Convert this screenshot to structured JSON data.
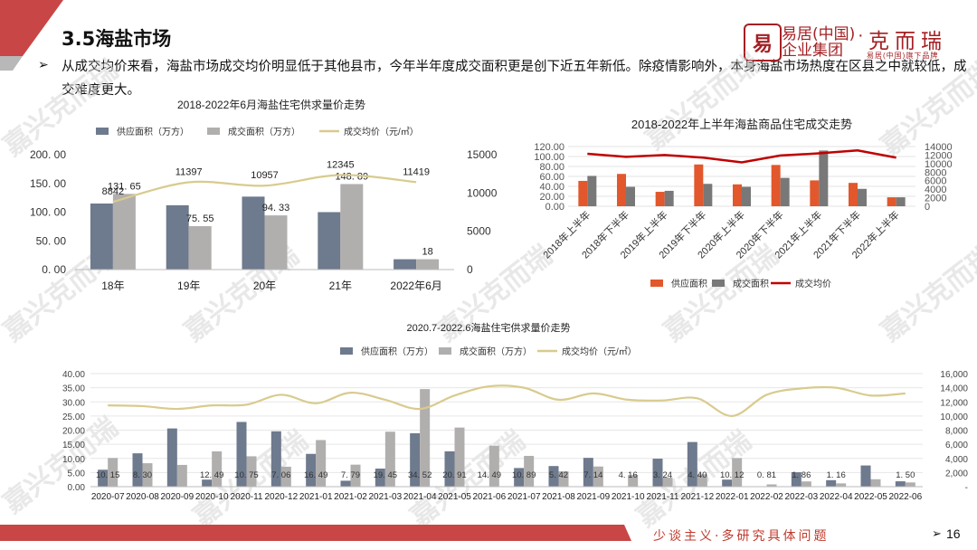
{
  "header": {
    "title": "3.5海盐市场",
    "bullet": "➢",
    "paragraph": "从成交均价来看，海盐市场成交均价明显低于其他县市，今年半年度成交面积更是创下近五年新低。除疫情影响外，本身海盐市场热度在区县之中就较低，成交难度更大。"
  },
  "logo": {
    "seal": "易",
    "line1": "易居(中国)",
    "line2": "企业集团",
    "dot": "·",
    "brand": "克而瑞",
    "sub": "易居(中国)旗下品牌"
  },
  "watermark_text": "嘉兴克而瑞",
  "footer": {
    "slogan": "少谈主义·多研究具体问题",
    "arrow": "➢",
    "page": "16"
  },
  "colors": {
    "supply_slate": "#6e7a8d",
    "deal_gray": "#b1aeae",
    "price_tan": "#d8cb8e",
    "supply_red": "#e2572c",
    "deal_dark": "#787878",
    "price_red": "#c00000",
    "accent_red": "#c0392b"
  },
  "chart_data": [
    {
      "type": "bar",
      "title": "2018-2022年6月海盐住宅供求量价走势",
      "categories": [
        "18年",
        "19年",
        "20年",
        "21年",
        "2022年6月"
      ],
      "series": [
        {
          "name": "供应面积（万方）",
          "values": [
            115,
            112,
            127,
            100,
            18
          ]
        },
        {
          "name": "成交面积（万方）",
          "values": [
            131.65,
            75.55,
            94.33,
            148.89,
            18
          ],
          "labels": [
            "131. 65",
            "75. 55",
            "94. 33",
            "148. 89",
            "18"
          ]
        },
        {
          "name": "成交均价（元/㎡）",
          "chart": "line",
          "axis": "right",
          "values": [
            8842,
            11397,
            10957,
            12345,
            11419
          ],
          "labels": [
            "8842",
            "11397",
            "10957",
            "12345",
            "11419"
          ]
        }
      ],
      "ylim": [
        0,
        200
      ],
      "yticks": [
        "0. 00",
        "50. 00",
        "100. 00",
        "150. 00",
        "200. 00"
      ],
      "y2lim": [
        0,
        15000
      ],
      "y2ticks": [
        "0",
        "5000",
        "10000",
        "15000"
      ],
      "legend": "top"
    },
    {
      "type": "bar",
      "title": "2018-2022年上半年海盐商品住宅成交走势",
      "categories": [
        "2018年上半年",
        "2018年下半年",
        "2019年上半年",
        "2019年下半年",
        "2020年上半年",
        "2020年下半年",
        "2021年上半年",
        "2021年下半年",
        "2022年上半年"
      ],
      "series": [
        {
          "name": "供应面积",
          "values": [
            51,
            65,
            29,
            84,
            44,
            83,
            52,
            47,
            18
          ]
        },
        {
          "name": "成交面积",
          "values": [
            61,
            39,
            31,
            45,
            39,
            57,
            112,
            35,
            18
          ]
        },
        {
          "name": "成交均价",
          "chart": "line",
          "axis": "right",
          "values": [
            12300,
            11600,
            12000,
            11400,
            10300,
            11900,
            12400,
            13100,
            11400
          ]
        }
      ],
      "ylim": [
        0,
        120
      ],
      "yticks": [
        "0.00",
        "20.00",
        "40.00",
        "60.00",
        "80.00",
        "100.00",
        "120.00"
      ],
      "y2lim": [
        0,
        14000
      ],
      "y2ticks": [
        "0",
        "2000",
        "4000",
        "6000",
        "8000",
        "10000",
        "12000",
        "14000"
      ],
      "legend": "bottom"
    },
    {
      "type": "bar",
      "title": "2020.7-2022.6海盐住宅供求量价走势",
      "categories": [
        "2020-07",
        "2020-08",
        "2020-09",
        "2020-10",
        "2020-11",
        "2020-12",
        "2021-01",
        "2021-02",
        "2021-03",
        "2021-04",
        "2021-05",
        "2021-06",
        "2021-07",
        "2021-08",
        "2021-09",
        "2021-10",
        "2021-11",
        "2021-12",
        "2022-01",
        "2022-02",
        "2022-03",
        "2022-04",
        "2022-05",
        "2022-06"
      ],
      "series": [
        {
          "name": "供应面积（万方）",
          "values": [
            6,
            11.8,
            20.6,
            2.5,
            22.9,
            19.6,
            11.6,
            2.1,
            6.4,
            18.9,
            12.5,
            0,
            6.6,
            7.3,
            10.2,
            0,
            9.9,
            15.8,
            2.5,
            0,
            5.1,
            2.3,
            7.5,
            1.9
          ]
        },
        {
          "name": "成交面积（万方）",
          "values": [
            10.15,
            8.3,
            7.7,
            12.49,
            10.75,
            7.06,
            16.49,
            7.79,
            19.45,
            34.52,
            20.91,
            14.49,
            10.89,
            5.42,
            7.14,
            4.16,
            3.24,
            4.4,
            10.12,
            0.81,
            1.86,
            1.16,
            2.63,
            1.5
          ],
          "labels": [
            "10. 15",
            "8. 30",
            "",
            "12. 49",
            "10. 75",
            "7. 06",
            "16. 49",
            "7. 79",
            "19. 45",
            "34. 52",
            "20. 91",
            "14. 49",
            "10. 89",
            "5. 42",
            "7. 14",
            "4. 16",
            "3. 24",
            "4. 40",
            "10. 12",
            "0. 81",
            "1. 86",
            "1. 16",
            "",
            "1. 50"
          ]
        },
        {
          "name": "成交均价（元/㎡）",
          "chart": "line",
          "axis": "right",
          "values": [
            11500,
            11400,
            11000,
            11500,
            11600,
            13000,
            11800,
            13300,
            12300,
            11000,
            12900,
            14200,
            14000,
            12300,
            13200,
            12300,
            12200,
            12500,
            10000,
            13000,
            13900,
            14000,
            12900,
            13200
          ]
        }
      ],
      "ylim": [
        0,
        40
      ],
      "yticks": [
        "0.00",
        "5.00",
        "10.00",
        "15.00",
        "20.00",
        "25.00",
        "30.00",
        "35.00",
        "40.00"
      ],
      "y2lim": [
        0,
        16000
      ],
      "y2ticks": [
        "-",
        "2,000",
        "4,000",
        "6,000",
        "8,000",
        "10,000",
        "12,000",
        "14,000",
        "16,000"
      ],
      "legend": "top"
    }
  ]
}
